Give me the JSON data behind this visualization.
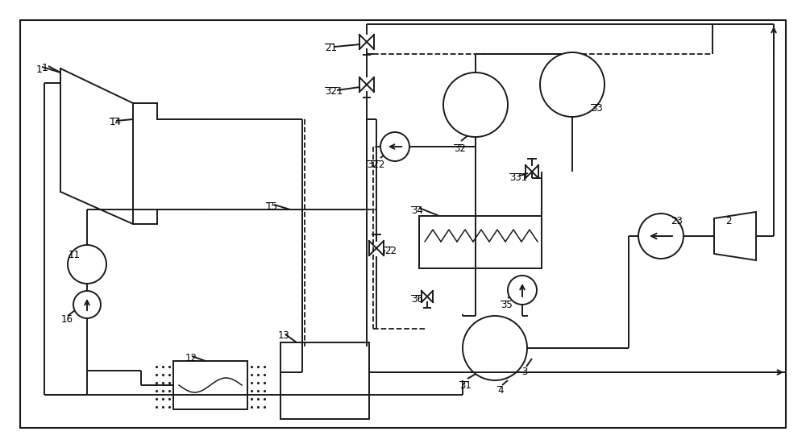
{
  "bg_color": "#ffffff",
  "line_color": "#1a1a1a",
  "dashed_color": "#1a1a1a",
  "fig_width": 10.0,
  "fig_height": 5.56,
  "dpi": 100
}
